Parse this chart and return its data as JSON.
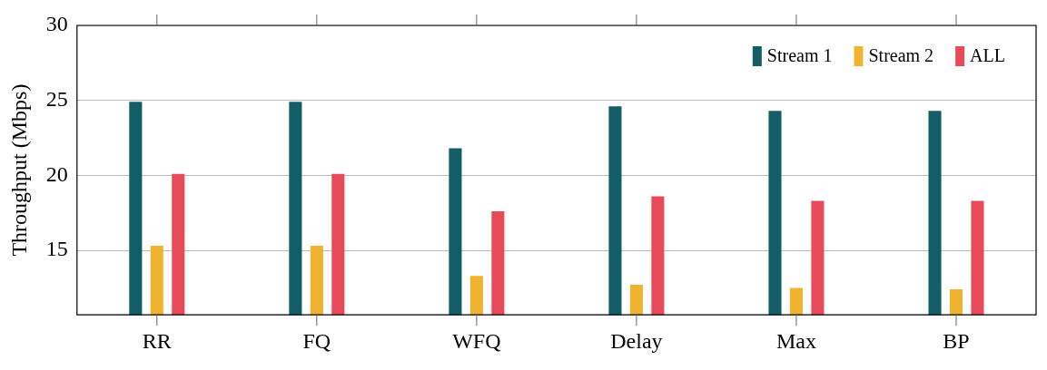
{
  "chart_data": {
    "type": "bar",
    "ylabel": "Throughput (Mbps)",
    "categories": [
      "RR",
      "FQ",
      "WFQ",
      "Delay",
      "Max",
      "BP"
    ],
    "series": [
      {
        "name": "Stream 1",
        "color": "#135e66",
        "values": [
          24.9,
          24.9,
          21.8,
          24.6,
          24.3,
          24.3
        ]
      },
      {
        "name": "Stream 2",
        "color": "#f0b330",
        "values": [
          15.3,
          15.3,
          13.3,
          12.7,
          12.5,
          12.4
        ]
      },
      {
        "name": "ALL",
        "color": "#e84a5a",
        "values": [
          20.1,
          20.1,
          17.6,
          18.6,
          18.3,
          18.3
        ]
      }
    ],
    "ylim": [
      10.7,
      30
    ],
    "yticks": [
      15,
      20,
      25,
      30
    ],
    "grid": "y",
    "legend": "top right"
  }
}
